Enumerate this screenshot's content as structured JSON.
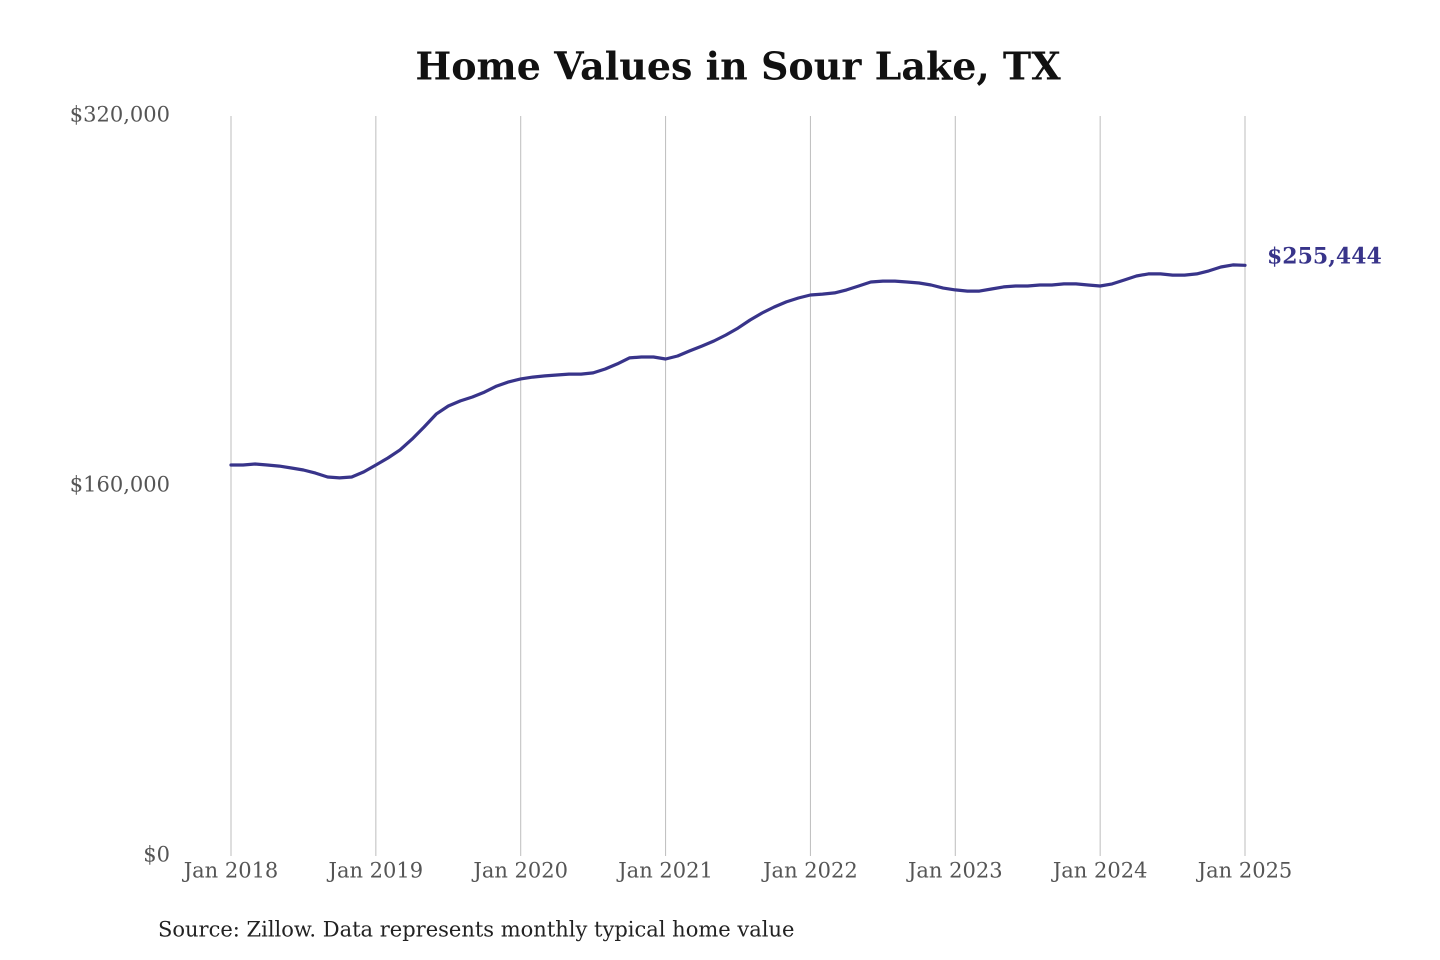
{
  "chart_data": {
    "type": "line",
    "title": "Home Values in Sour Lake, TX",
    "source": "Source: Zillow. Data represents monthly typical home value",
    "color": "#38348a",
    "x": [
      "2018-01",
      "2018-02",
      "2018-03",
      "2018-04",
      "2018-05",
      "2018-06",
      "2018-07",
      "2018-08",
      "2018-09",
      "2018-10",
      "2018-11",
      "2018-12",
      "2019-01",
      "2019-02",
      "2019-03",
      "2019-04",
      "2019-05",
      "2019-06",
      "2019-07",
      "2019-08",
      "2019-09",
      "2019-10",
      "2019-11",
      "2019-12",
      "2020-01",
      "2020-02",
      "2020-03",
      "2020-04",
      "2020-05",
      "2020-06",
      "2020-07",
      "2020-08",
      "2020-09",
      "2020-10",
      "2020-11",
      "2020-12",
      "2021-01",
      "2021-02",
      "2021-03",
      "2021-04",
      "2021-05",
      "2021-06",
      "2021-07",
      "2021-08",
      "2021-09",
      "2021-10",
      "2021-11",
      "2021-12",
      "2022-01",
      "2022-02",
      "2022-03",
      "2022-04",
      "2022-05",
      "2022-06",
      "2022-07",
      "2022-08",
      "2022-09",
      "2022-10",
      "2022-11",
      "2022-12",
      "2023-01",
      "2023-02",
      "2023-03",
      "2023-04",
      "2023-05",
      "2023-06",
      "2023-07",
      "2023-08",
      "2023-09",
      "2023-10",
      "2023-11",
      "2023-12",
      "2024-01",
      "2024-02",
      "2024-03",
      "2024-04",
      "2024-05",
      "2024-06",
      "2024-07",
      "2024-08",
      "2024-09",
      "2024-10",
      "2024-11",
      "2024-12",
      "2025-01"
    ],
    "values": [
      169100,
      169100,
      169500,
      169100,
      168600,
      167800,
      166900,
      165600,
      163900,
      163500,
      163900,
      166100,
      169100,
      172100,
      175600,
      180300,
      185500,
      191100,
      194600,
      196800,
      198500,
      200600,
      203200,
      205000,
      206300,
      207100,
      207600,
      208000,
      208400,
      208400,
      208900,
      210600,
      212800,
      215400,
      215800,
      215800,
      214900,
      216200,
      218400,
      220500,
      222700,
      225300,
      228300,
      231800,
      234800,
      237400,
      239600,
      241300,
      242600,
      243000,
      243500,
      244800,
      246500,
      248200,
      248600,
      248600,
      248200,
      247800,
      246900,
      245600,
      244800,
      244300,
      244300,
      245200,
      246100,
      246500,
      246500,
      246900,
      246900,
      247400,
      247400,
      246900,
      246500,
      247400,
      249100,
      250800,
      251700,
      251700,
      251200,
      251200,
      251700,
      253000,
      254700,
      255600,
      255444
    ],
    "value_labels": [
      null,
      null,
      null,
      null,
      null,
      null,
      null,
      null,
      null,
      null,
      null,
      null,
      null,
      null,
      null,
      null,
      null,
      null,
      null,
      null,
      null,
      null,
      null,
      null,
      null,
      null,
      null,
      null,
      null,
      null,
      null,
      null,
      null,
      null,
      null,
      null,
      null,
      null,
      null,
      null,
      null,
      null,
      null,
      null,
      null,
      null,
      null,
      null,
      null,
      null,
      null,
      null,
      null,
      null,
      null,
      null,
      null,
      null,
      null,
      null,
      null,
      null,
      null,
      null,
      null,
      null,
      null,
      null,
      null,
      null,
      null,
      null,
      null,
      null,
      null,
      null,
      null,
      null,
      null,
      null,
      null,
      null,
      null,
      null,
      "$255,444"
    ],
    "xlim": [
      "2018-01",
      "2025-01"
    ],
    "xticks": [
      {
        "value": "2018-01",
        "label": "Jan 2018"
      },
      {
        "value": "2019-01",
        "label": "Jan 2019"
      },
      {
        "value": "2020-01",
        "label": "Jan 2020"
      },
      {
        "value": "2021-01",
        "label": "Jan 2021"
      },
      {
        "value": "2022-01",
        "label": "Jan 2022"
      },
      {
        "value": "2023-01",
        "label": "Jan 2023"
      },
      {
        "value": "2024-01",
        "label": "Jan 2024"
      },
      {
        "value": "2025-01",
        "label": "Jan 2025"
      }
    ],
    "ylim": [
      0,
      320000
    ],
    "yticks": [
      {
        "value": 0,
        "label": "$0"
      },
      {
        "value": 160000,
        "label": "$160,000"
      },
      {
        "value": 320000,
        "label": "$320,000"
      }
    ],
    "grid": true
  }
}
